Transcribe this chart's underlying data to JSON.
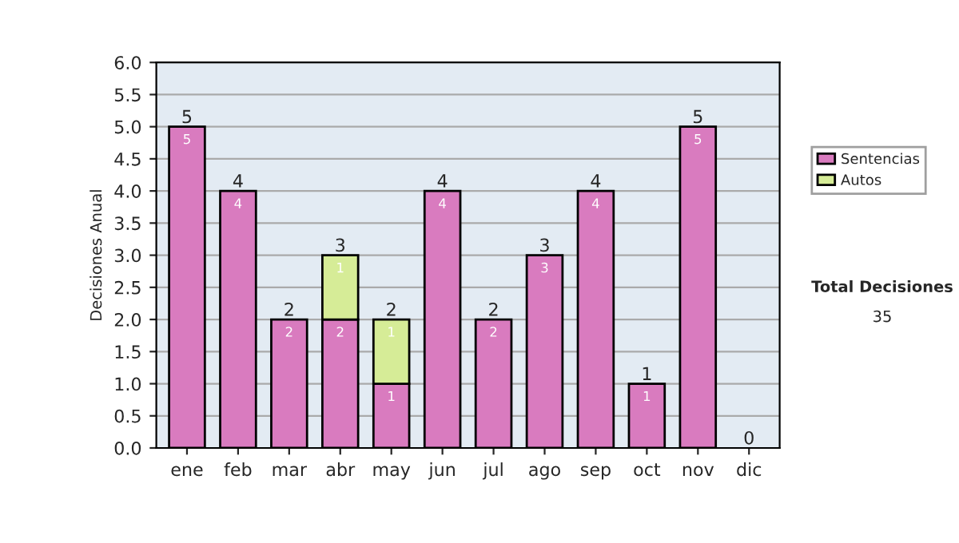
{
  "chart_data": {
    "type": "bar",
    "stacked": true,
    "ylabel": "Decisiones Anual",
    "categories": [
      "ene",
      "feb",
      "mar",
      "abr",
      "may",
      "jun",
      "jul",
      "ago",
      "sep",
      "oct",
      "nov",
      "dic"
    ],
    "series": [
      {
        "name": "Sentencias",
        "color": "#d97bbf",
        "values": [
          5,
          4,
          2,
          2,
          1,
          4,
          2,
          3,
          4,
          1,
          5,
          0
        ],
        "value_labels": [
          "5",
          "4",
          "2",
          "2",
          "1",
          "4",
          "2",
          "3",
          "4",
          "1",
          "5",
          null
        ]
      },
      {
        "name": "Autos",
        "color": "#d6ec97",
        "values": [
          0,
          0,
          0,
          1,
          1,
          0,
          0,
          0,
          0,
          0,
          0,
          0
        ],
        "value_labels": [
          null,
          null,
          null,
          "1",
          "1",
          null,
          null,
          null,
          null,
          null,
          null,
          null
        ]
      }
    ],
    "totals": [
      "5",
      "4",
      "2",
      "3",
      "2",
      "4",
      "2",
      "3",
      "4",
      "1",
      "5",
      "0"
    ],
    "ylim": [
      0,
      6
    ],
    "yticks": [
      "0.0",
      "0.5",
      "1.0",
      "1.5",
      "2.0",
      "2.5",
      "3.0",
      "3.5",
      "4.0",
      "4.5",
      "5.0",
      "5.5",
      "6.0"
    ],
    "grid": "y",
    "legend": "right",
    "annotations": [
      "Total Decisiones",
      "35"
    ]
  }
}
